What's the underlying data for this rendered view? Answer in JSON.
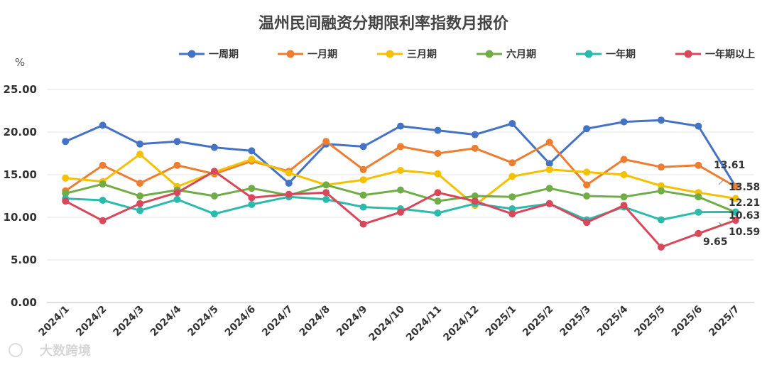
{
  "chart_data": {
    "type": "line",
    "title": "温州民间融资分期限利率指数月报价",
    "unit": "%",
    "ylim": [
      0,
      25
    ],
    "y_ticks": [
      "0.00",
      "5.00",
      "10.00",
      "15.00",
      "20.00",
      "25.00"
    ],
    "legend_position": "top",
    "grid": true,
    "categories": [
      "2024/1",
      "2024/2",
      "2024/3",
      "2024/4",
      "2024/5",
      "2024/6",
      "2024/7",
      "2024/8",
      "2024/9",
      "2024/10",
      "2024/11",
      "2024/12",
      "2025/1",
      "2025/2",
      "2025/3",
      "2025/4",
      "2025/5",
      "2025/6",
      "2025/7"
    ],
    "series": [
      {
        "name": "一周期",
        "color": "#4472C4",
        "values": [
          18.9,
          20.8,
          18.6,
          18.9,
          18.2,
          17.8,
          14.0,
          18.6,
          18.3,
          20.7,
          20.2,
          19.7,
          21.0,
          16.3,
          20.4,
          21.2,
          21.4,
          20.7,
          13.61
        ]
      },
      {
        "name": "一月期",
        "color": "#ED7D31",
        "values": [
          13.1,
          16.1,
          14.0,
          16.1,
          15.1,
          16.6,
          15.4,
          18.9,
          15.6,
          18.3,
          17.5,
          18.1,
          16.4,
          18.8,
          13.8,
          16.8,
          15.9,
          16.1,
          13.58
        ]
      },
      {
        "name": "三月期",
        "color": "#F4C100",
        "values": [
          14.6,
          14.2,
          17.4,
          13.6,
          15.3,
          16.8,
          15.2,
          13.8,
          14.4,
          15.5,
          15.1,
          11.4,
          14.8,
          15.6,
          15.3,
          15.0,
          13.7,
          12.9,
          12.21
        ]
      },
      {
        "name": "六月期",
        "color": "#70AD47",
        "values": [
          12.8,
          13.9,
          12.5,
          13.2,
          12.5,
          13.4,
          12.6,
          13.8,
          12.6,
          13.2,
          11.9,
          12.5,
          12.4,
          13.4,
          12.5,
          12.4,
          13.1,
          12.4,
          10.59
        ]
      },
      {
        "name": "一年期",
        "color": "#2BBBAD",
        "values": [
          12.2,
          12.0,
          10.8,
          12.1,
          10.4,
          11.5,
          12.4,
          12.1,
          11.2,
          11.0,
          10.5,
          11.6,
          11.0,
          11.6,
          9.7,
          11.2,
          9.7,
          10.6,
          10.63
        ]
      },
      {
        "name": "一年期以上",
        "color": "#D9475B",
        "values": [
          11.9,
          9.6,
          11.6,
          12.9,
          15.4,
          12.3,
          12.7,
          12.9,
          9.2,
          10.6,
          12.9,
          11.9,
          10.4,
          11.6,
          9.4,
          11.4,
          6.5,
          8.1,
          9.65
        ]
      }
    ],
    "end_labels": [
      "13.61",
      "13.58",
      "12.21",
      "10.63",
      "10.59",
      "9.65"
    ]
  },
  "watermark": "大数跨境"
}
